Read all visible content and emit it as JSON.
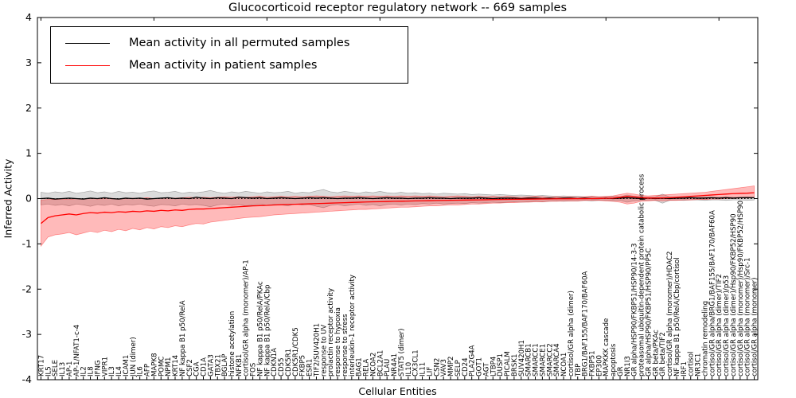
{
  "title": "Glucocorticoid receptor regulatory network -- 669 samples",
  "axes": {
    "ylabel": "Inferred Activity",
    "xlabel": "Cellular Entities"
  },
  "legend": {
    "entries": [
      {
        "label": "Mean activity in all permuted samples",
        "color": "#000000"
      },
      {
        "label": "Mean activity in patient samples",
        "color": "#ff0000"
      }
    ]
  },
  "chart_data": {
    "type": "line",
    "title": "Glucocorticoid receptor regulatory network -- 669 samples",
    "xlabel": "Cellular Entities",
    "ylabel": "Inferred Activity",
    "ylim": [
      -4,
      4
    ],
    "yticks": [
      -4,
      -3,
      -2,
      -1,
      0,
      1,
      2,
      3,
      4
    ],
    "grid": false,
    "legend_position": "upper left",
    "zero_line": "dotted",
    "categories": [
      "KRT17",
      "IL5",
      "SELE",
      "IL13",
      "AP-1",
      "AP-1/NFAT1-c-4",
      "IL2",
      "IL8",
      "IFNG",
      "VIPR1",
      "IL3",
      "IL4",
      "ICAM1",
      "JUN (dimer)",
      "IL6",
      "AFP",
      "MAPK8",
      "POMC",
      "NPM1",
      "KRT14",
      "NF kappa B1 p50/RelA",
      "CSF2",
      "CGA",
      "CD1A",
      "GATA3",
      "TBX21",
      "BGLAP",
      "histone acetylation",
      "NFKB1",
      "cortisol/GR alpha (monomer)/AP-1",
      "FOS",
      "NF kappa B1 p50/RelA/PKAc",
      "NF kappa B1 p50/RelA/Cbp",
      "CDKN1A",
      "CD55",
      "CDK5R1",
      "CDK5R1/CDK5",
      "FKBP5",
      "ESR1",
      "TIF2/SUV420H1",
      "response to UV",
      "prolactin receptor activity",
      "response to hypoxia",
      "response to stress",
      "interleukin-1 receptor activity",
      "BAG1",
      "RELA",
      "NCOA2",
      "BCL2A1",
      "PLAU",
      "NR4A1",
      "STAT5 (dimer)",
      "IL10",
      "CX3CL1",
      "IL11",
      "LIF",
      "CSN2",
      "VAV3",
      "MMP2",
      "SELP",
      "CD24",
      "PLA2G4A",
      "GOT1",
      "AGT",
      "LTBP4",
      "DUSP1",
      "PICALM",
      "BRSK1",
      "SUV420H1",
      "SMARCB1",
      "SMARCC1",
      "SMARCE1",
      "SMARCC2",
      "SMARCA4",
      "NCOA1",
      "cortisol/GR alpha (dimer)",
      "TBP",
      "BRG1/BAF155/BAF170/BAF60A",
      "FKBP51",
      "EP300",
      "MAPKKK cascade",
      "apoptosis",
      "GR",
      "NR1I3",
      "GR alpha/HSP90/FKBP51/HSP90/14-3-3",
      "proteasomal ubiquitin-dependent protein catabolic process",
      "GR alpha/HSP90/FKBP51/HSP90/PP5C",
      "GR beta/PKAc",
      "GR beta/TIF2",
      "cortisol/GR alpha (monomer)/HDAC2",
      "NF kappa B1 p50/RelA/Cbp/cortisol",
      "IRF1",
      "cortisol",
      "NR3C1",
      "chromatin remodeling",
      "cortisol/GR alpha/BRG1/BAF155/BAF170/BAF60A",
      "cortisol/GR alpha (dimer)/TIF2",
      "cortisol/GR alpha (dimer)/p53",
      "cortisol/GR alpha (dimer)/Hsp90/FKBP52/HSP90",
      "cortisol/GR alpha (monomer)/Hsp90/FKBP52/HSP90",
      "cortisol/GR alpha (monomer)/Src-1",
      "cortisol/GR alpha (monomer)"
    ],
    "series": [
      {
        "name": "Mean activity in all permuted samples",
        "color": "#000000",
        "values": [
          0.0,
          0.01,
          -0.01,
          0.0,
          0.01,
          0.0,
          -0.01,
          0.01,
          0.0,
          0.02,
          0.0,
          -0.01,
          0.01,
          0.0,
          0.01,
          -0.01,
          0.0,
          0.01,
          0.02,
          0.0,
          0.01,
          0.0,
          0.03,
          0.01,
          0.0,
          0.02,
          0.01,
          0.0,
          0.03,
          0.02,
          0.01,
          0.02,
          0.0,
          0.01,
          0.02,
          0.01,
          0.0,
          0.01,
          0.02,
          0.01,
          0.02,
          0.01,
          0.0,
          0.01,
          0.01,
          0.02,
          0.01,
          0.0,
          0.01,
          0.02,
          0.01,
          0.01,
          0.0,
          0.01,
          0.01,
          0.02,
          0.01,
          0.01,
          0.0,
          0.01,
          0.01,
          0.01,
          0.02,
          0.01,
          0.0,
          0.01,
          0.01,
          0.01,
          0.0,
          0.01,
          0.01,
          0.0,
          0.01,
          0.0,
          0.01,
          0.01,
          0.0,
          0.01,
          0.0,
          0.0,
          0.01,
          0.0,
          0.01,
          0.02,
          0.01,
          0.0,
          0.01,
          0.0,
          0.01,
          0.0,
          0.01,
          0.01,
          0.02,
          0.01,
          0.01,
          0.02,
          0.01,
          0.02,
          0.01,
          0.02,
          0.02,
          0.02
        ]
      },
      {
        "name": "Mean activity in patient samples",
        "color": "#ff0000",
        "values": [
          -0.55,
          -0.42,
          -0.38,
          -0.36,
          -0.34,
          -0.36,
          -0.33,
          -0.31,
          -0.32,
          -0.3,
          -0.31,
          -0.29,
          -0.3,
          -0.28,
          -0.29,
          -0.27,
          -0.28,
          -0.26,
          -0.27,
          -0.25,
          -0.26,
          -0.24,
          -0.23,
          -0.23,
          -0.22,
          -0.21,
          -0.2,
          -0.19,
          -0.18,
          -0.17,
          -0.16,
          -0.155,
          -0.15,
          -0.14,
          -0.135,
          -0.13,
          -0.125,
          -0.12,
          -0.115,
          -0.11,
          -0.105,
          -0.1,
          -0.095,
          -0.09,
          -0.085,
          -0.08,
          -0.075,
          -0.07,
          -0.068,
          -0.065,
          -0.06,
          -0.058,
          -0.055,
          -0.05,
          -0.048,
          -0.045,
          -0.042,
          -0.04,
          -0.038,
          -0.035,
          -0.032,
          -0.03,
          -0.028,
          -0.025,
          -0.022,
          -0.02,
          -0.018,
          -0.016,
          -0.014,
          -0.012,
          -0.01,
          -0.008,
          -0.006,
          -0.005,
          -0.004,
          -0.003,
          -0.002,
          -0.001,
          0.0,
          0.003,
          0.006,
          0.01,
          0.03,
          0.05,
          0.04,
          0.02,
          0.012,
          0.012,
          0.015,
          0.02,
          0.03,
          0.04,
          0.05,
          0.06,
          0.07,
          0.08,
          0.09,
          0.1,
          0.11,
          0.115,
          0.12,
          0.13
        ]
      }
    ],
    "bands": [
      {
        "name": "permuted samples range",
        "color": "#000000",
        "opacity": 0.14,
        "symmetric": true,
        "hi": [
          0.14,
          0.12,
          0.15,
          0.13,
          0.16,
          0.12,
          0.14,
          0.17,
          0.13,
          0.15,
          0.12,
          0.16,
          0.13,
          0.14,
          0.12,
          0.15,
          0.17,
          0.13,
          0.14,
          0.16,
          0.12,
          0.14,
          0.13,
          0.15,
          0.18,
          0.14,
          0.12,
          0.15,
          0.13,
          0.16,
          0.14,
          0.12,
          0.15,
          0.13,
          0.14,
          0.16,
          0.12,
          0.14,
          0.13,
          0.17,
          0.2,
          0.15,
          0.13,
          0.16,
          0.14,
          0.12,
          0.15,
          0.13,
          0.16,
          0.13,
          0.12,
          0.14,
          0.12,
          0.13,
          0.11,
          0.12,
          0.1,
          0.12,
          0.11,
          0.1,
          0.11,
          0.09,
          0.1,
          0.09,
          0.08,
          0.09,
          0.08,
          0.07,
          0.08,
          0.07,
          0.06,
          0.07,
          0.06,
          0.05,
          0.06,
          0.05,
          0.05,
          0.04,
          0.05,
          0.04,
          0.04,
          0.05,
          0.04,
          0.08,
          0.05,
          0.04,
          0.03,
          0.04,
          0.1,
          0.04,
          0.03,
          0.04,
          0.03,
          0.03,
          0.04,
          0.03,
          0.03,
          0.04,
          0.03,
          0.03,
          0.04,
          0.03
        ]
      },
      {
        "name": "patient samples range",
        "color": "#ff0000",
        "opacity": 0.27,
        "symmetric": false,
        "lo": [
          -1.05,
          -0.85,
          -0.8,
          -0.78,
          -0.75,
          -0.8,
          -0.76,
          -0.72,
          -0.75,
          -0.7,
          -0.73,
          -0.68,
          -0.71,
          -0.66,
          -0.69,
          -0.64,
          -0.67,
          -0.62,
          -0.64,
          -0.6,
          -0.62,
          -0.58,
          -0.55,
          -0.56,
          -0.52,
          -0.5,
          -0.48,
          -0.46,
          -0.44,
          -0.42,
          -0.41,
          -0.4,
          -0.38,
          -0.36,
          -0.35,
          -0.34,
          -0.33,
          -0.32,
          -0.31,
          -0.3,
          -0.29,
          -0.28,
          -0.27,
          -0.26,
          -0.25,
          -0.24,
          -0.24,
          -0.23,
          -0.22,
          -0.21,
          -0.2,
          -0.19,
          -0.19,
          -0.18,
          -0.17,
          -0.16,
          -0.16,
          -0.15,
          -0.14,
          -0.14,
          -0.13,
          -0.12,
          -0.12,
          -0.11,
          -0.1,
          -0.1,
          -0.09,
          -0.09,
          -0.08,
          -0.08,
          -0.07,
          -0.07,
          -0.06,
          -0.06,
          -0.05,
          -0.05,
          -0.05,
          -0.04,
          -0.04,
          -0.04,
          -0.05,
          -0.06,
          -0.08,
          -0.12,
          -0.1,
          -0.06,
          -0.05,
          -0.04,
          -0.05,
          -0.04,
          -0.04,
          -0.03,
          -0.03,
          -0.02,
          -0.02,
          -0.01,
          -0.01,
          0.0,
          0.0,
          0.01,
          0.01,
          0.02
        ],
        "hi": [
          -0.03,
          -0.02,
          -0.02,
          -0.01,
          -0.02,
          0.0,
          -0.01,
          0.01,
          -0.01,
          0.0,
          0.01,
          -0.01,
          0.0,
          0.01,
          0.0,
          0.02,
          0.0,
          0.01,
          0.02,
          0.01,
          0.02,
          0.03,
          0.02,
          0.03,
          0.02,
          0.03,
          0.04,
          0.03,
          0.04,
          0.03,
          0.04,
          0.05,
          0.03,
          0.04,
          0.05,
          0.04,
          0.05,
          0.04,
          0.05,
          0.06,
          0.05,
          0.04,
          0.05,
          0.06,
          0.05,
          0.06,
          0.05,
          0.06,
          0.05,
          0.06,
          0.05,
          0.06,
          0.05,
          0.06,
          0.05,
          0.06,
          0.05,
          0.04,
          0.05,
          0.06,
          0.05,
          0.04,
          0.05,
          0.04,
          0.05,
          0.04,
          0.05,
          0.04,
          0.03,
          0.04,
          0.05,
          0.04,
          0.03,
          0.04,
          0.03,
          0.04,
          0.03,
          0.04,
          0.05,
          0.04,
          0.05,
          0.06,
          0.09,
          0.12,
          0.1,
          0.07,
          0.06,
          0.07,
          0.08,
          0.09,
          0.1,
          0.11,
          0.12,
          0.13,
          0.14,
          0.16,
          0.18,
          0.2,
          0.22,
          0.24,
          0.26,
          0.28
        ]
      }
    ]
  }
}
